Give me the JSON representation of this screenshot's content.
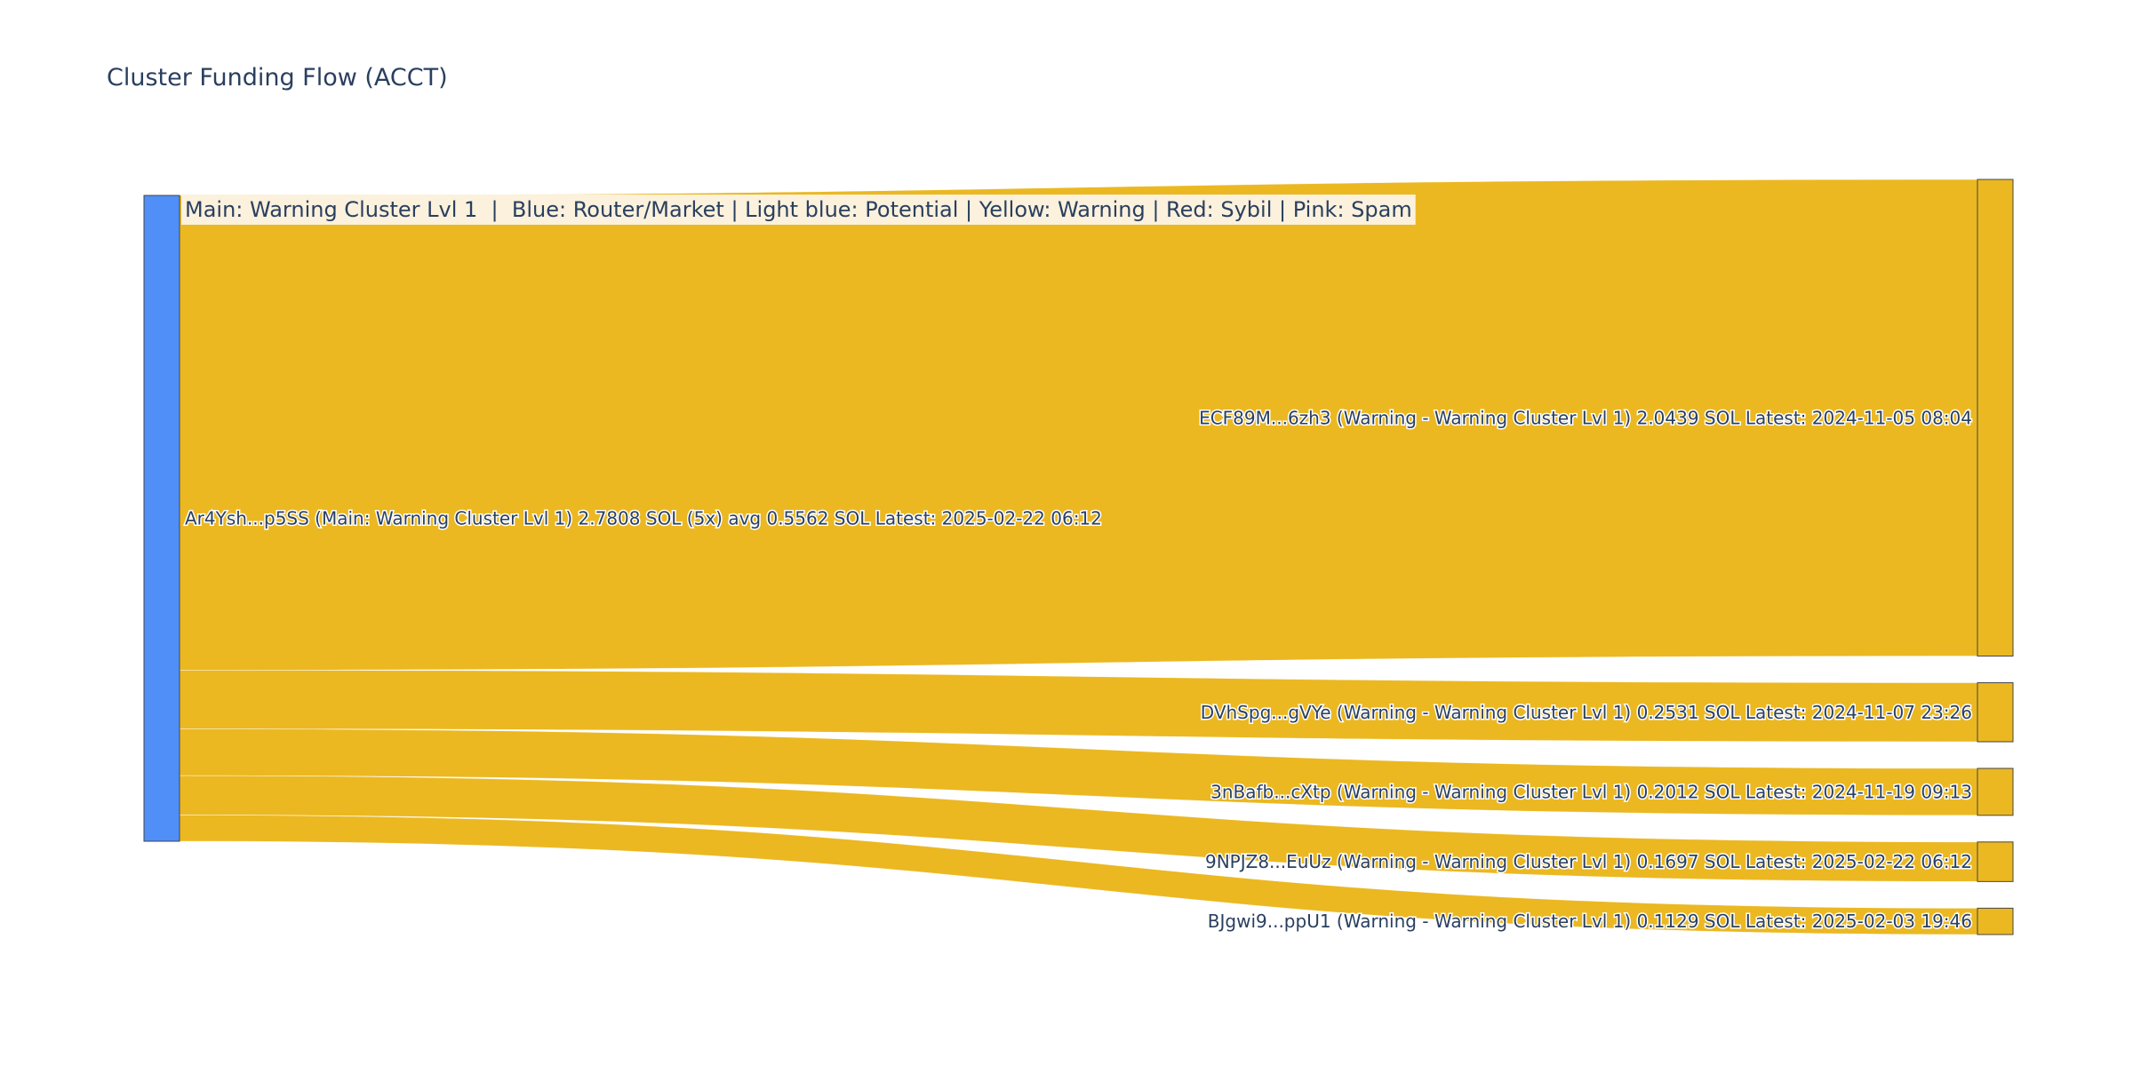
{
  "title": "Cluster Funding Flow (ACCT)",
  "legend_note": "Main: Warning Cluster Lvl 1  |  Blue: Router/Market | Light blue: Potential | Yellow: Warning | Red: Sybil | Pink: Spam",
  "colors": {
    "source_node": "#4f8ff7",
    "warning": "#ebb822",
    "node_border": "#444444",
    "label": "#2a3f5f",
    "legend_bg": "#fbf1dc"
  },
  "chart_data": {
    "type": "sankey",
    "source": {
      "id": "Ar4Ysh...p5SS",
      "label": "Ar4Ysh...p5SS (Main: Warning Cluster Lvl 1) 2.7808 SOL (5x) avg 0.5562 SOL Latest: 2025-02-22 06:12",
      "total_sol": 2.7808,
      "count": 5,
      "avg_sol": 0.5562,
      "latest": "2025-02-22 06:12",
      "category": "Main"
    },
    "targets": [
      {
        "id": "ECF89M...6zh3",
        "label": "ECF89M...6zh3 (Warning - Warning Cluster Lvl 1) 2.0439 SOL Latest: 2024-11-05 08:04",
        "value": 2.0439,
        "latest": "2024-11-05 08:04",
        "category": "Warning"
      },
      {
        "id": "DVhSpg...gVYe",
        "label": "DVhSpg...gVYe (Warning - Warning Cluster Lvl 1) 0.2531 SOL Latest: 2024-11-07 23:26",
        "value": 0.2531,
        "latest": "2024-11-07 23:26",
        "category": "Warning"
      },
      {
        "id": "3nBafb...cXtp",
        "label": "3nBafb...cXtp (Warning - Warning Cluster Lvl 1) 0.2012 SOL Latest: 2024-11-19 09:13",
        "value": 0.2012,
        "latest": "2024-11-19 09:13",
        "category": "Warning"
      },
      {
        "id": "9NPJZ8...EuUz",
        "label": "9NPJZ8...EuUz (Warning - Warning Cluster Lvl 1) 0.1697 SOL Latest: 2025-02-22 06:12",
        "value": 0.1697,
        "latest": "2025-02-22 06:12",
        "category": "Warning"
      },
      {
        "id": "BJgwi9...ppU1",
        "label": "BJgwi9...ppU1 (Warning - Warning Cluster Lvl 1) 0.1129 SOL Latest: 2025-02-03 19:46",
        "value": 0.1129,
        "latest": "2025-02-03 19:46",
        "category": "Warning"
      }
    ]
  }
}
